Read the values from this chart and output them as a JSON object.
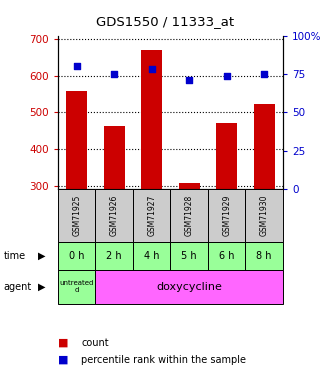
{
  "title": "GDS1550 / 11333_at",
  "samples": [
    "GSM71925",
    "GSM71926",
    "GSM71927",
    "GSM71928",
    "GSM71929",
    "GSM71930"
  ],
  "times": [
    "0 h",
    "2 h",
    "4 h",
    "5 h",
    "6 h",
    "8 h"
  ],
  "agent_first": "untreated\nd",
  "agent_rest": "doxycycline",
  "bar_values": [
    560,
    462,
    672,
    308,
    470,
    522
  ],
  "dot_values": [
    80,
    75,
    78,
    71,
    74,
    75
  ],
  "ylim_left": [
    290,
    710
  ],
  "ylim_right": [
    0,
    100
  ],
  "yticks_left": [
    300,
    400,
    500,
    600,
    700
  ],
  "yticks_right": [
    0,
    25,
    50,
    75,
    100
  ],
  "bar_color": "#cc0000",
  "dot_color": "#0000cc",
  "bar_bottom": 290,
  "plot_bg": "#ffffff",
  "time_bg": "#99ff99",
  "agent_bg": "#ff66ff",
  "sample_bg": "#cccccc",
  "legend_count_color": "#cc0000",
  "legend_pct_color": "#0000cc"
}
